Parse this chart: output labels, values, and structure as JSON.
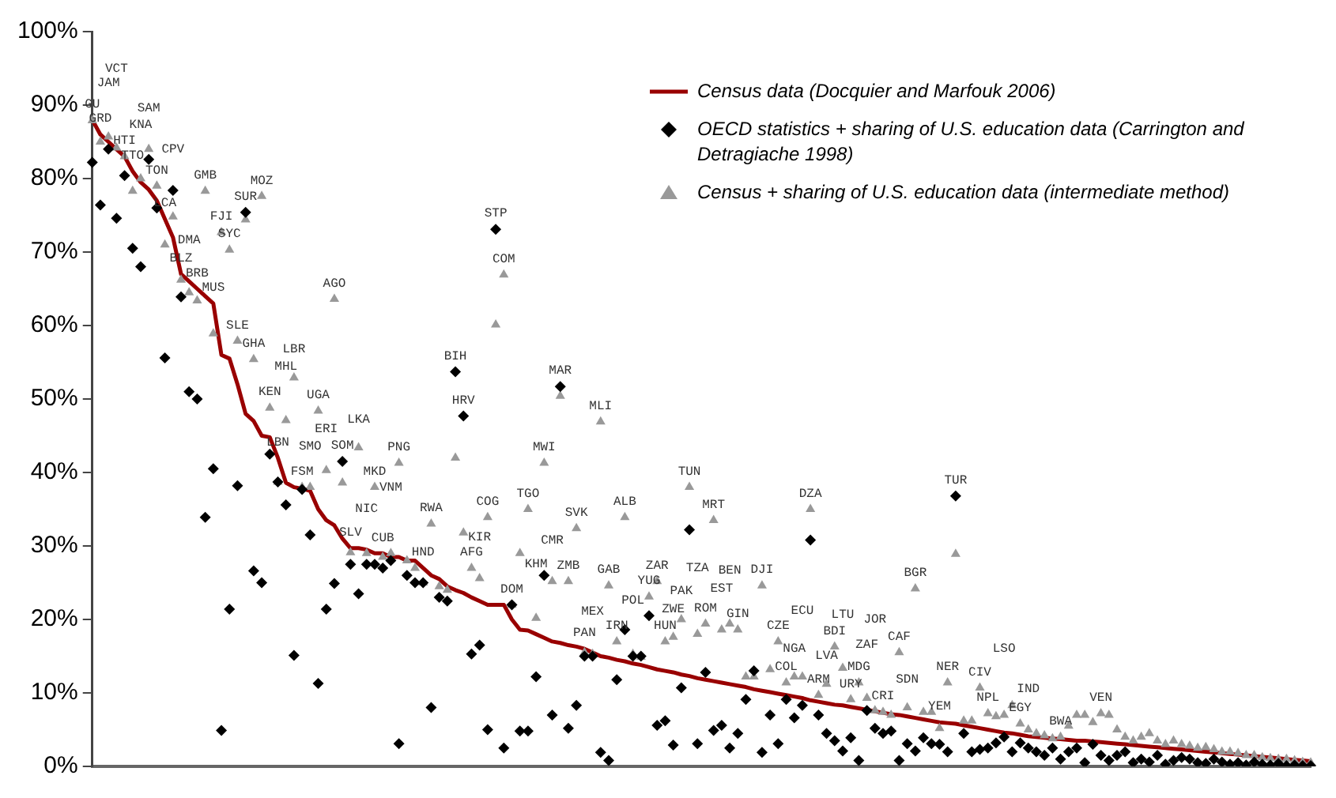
{
  "chart_data": {
    "type": "line",
    "legend": "top right",
    "tick_labels": "y",
    "grid": false,
    "ylim": [
      0,
      100
    ],
    "yticks": [
      {
        "value": 0,
        "label": "0%"
      },
      {
        "value": 10,
        "label": "10%"
      },
      {
        "value": 20,
        "label": "20%"
      },
      {
        "value": 30,
        "label": "30%"
      },
      {
        "value": 40,
        "label": "40%"
      },
      {
        "value": 50,
        "label": "50%"
      },
      {
        "value": 60,
        "label": "60%"
      },
      {
        "value": 70,
        "label": "70%"
      },
      {
        "value": 80,
        "label": "80%"
      },
      {
        "value": 90,
        "label": "90%"
      },
      {
        "value": 100,
        "label": "100%"
      }
    ],
    "categories": [
      "GU",
      "GRD",
      "JAM",
      "VCT",
      "HTI",
      "TTO",
      "KNA",
      "SAM",
      "TON",
      "LCA",
      "CPV",
      "BLZ",
      "DMA",
      "BRB",
      "GMB",
      "MUS",
      "FJI",
      "SYC",
      "SLE",
      "SUR",
      "GHA",
      "MOZ",
      "KEN",
      "LBN",
      "MHL",
      "LBR",
      "FSM",
      "SMO",
      "UGA",
      "ERI",
      "AGO",
      "SOM",
      "SLV",
      "LKA",
      "NIC",
      "MKD",
      "CUB",
      "VNM",
      "PNG",
      null,
      null,
      "HND",
      "RWA",
      null,
      null,
      "BIH",
      "HRV",
      "AFG",
      "KIR",
      "COG",
      "STP",
      "COM",
      "DOM",
      null,
      "TGO",
      "KHM",
      "MWI",
      "CMR",
      "MAR",
      "ZMB",
      "SVK",
      "PAN",
      "MEX",
      "MLI",
      "GAB",
      "IRN",
      "ALB",
      "POL",
      null,
      "YUG",
      "ZAR",
      "HUN",
      "ZWE",
      "PAK",
      "TUN",
      "TZA",
      "ROM",
      "MRT",
      "EST",
      "BEN",
      "GIN",
      null,
      null,
      "DJI",
      null,
      "CZE",
      "COL",
      "NGA",
      "ECU",
      "DZA",
      "ARM",
      "LVA",
      "BDI",
      "LTU",
      "URY",
      "MDG",
      "ZAF",
      "JOR",
      "CRI",
      null,
      "CAF",
      "SDN",
      "BGR",
      null,
      null,
      "YEM",
      "NER",
      "TUR",
      null,
      null,
      "CIV",
      "NPL",
      null,
      "LSO",
      null,
      "EGY",
      "IND",
      null,
      null,
      null,
      "BWA",
      null,
      null,
      null,
      null,
      "VEN",
      null,
      null,
      null,
      null,
      null,
      null,
      null,
      null,
      null,
      null,
      null,
      null,
      null,
      null,
      null,
      null,
      null,
      null,
      null,
      null,
      null,
      null,
      null,
      null,
      null,
      null
    ],
    "series": [
      {
        "name": "Census data (Docquier and Marfouk 2006)",
        "type": "line",
        "marker": "none",
        "line_style": "solid",
        "color": "#990000",
        "values": [
          88,
          86,
          85,
          84,
          83,
          81,
          79.5,
          78.5,
          77,
          74.5,
          72,
          67,
          66,
          65,
          64,
          63,
          56,
          55.5,
          52,
          48,
          47,
          45,
          44.8,
          42,
          38.6,
          38,
          37.8,
          37.5,
          35,
          33.5,
          32.8,
          31,
          29.7,
          29.7,
          29.5,
          29,
          29,
          28.5,
          28.5,
          28,
          28,
          27,
          26,
          25.5,
          24.5,
          24,
          23.6,
          23,
          22.5,
          22,
          22,
          22,
          20,
          18.6,
          18.5,
          18,
          17.5,
          17,
          16.8,
          16.5,
          16.3,
          16,
          15.5,
          15,
          14.8,
          14.5,
          14.3,
          14,
          13.8,
          13.5,
          13.2,
          13,
          12.8,
          12.5,
          12.3,
          12,
          11.8,
          11.6,
          11.4,
          11.2,
          11,
          10.8,
          10.5,
          10.3,
          10.1,
          9.9,
          9.7,
          9.5,
          9.3,
          9,
          8.8,
          8.6,
          8.4,
          8.3,
          8.1,
          7.9,
          7.7,
          7.5,
          7.3,
          7.1,
          7,
          6.8,
          6.6,
          6.4,
          6.2,
          6,
          5.9,
          5.8,
          5.6,
          5.4,
          5.2,
          5,
          4.8,
          4.6,
          4.5,
          4.3,
          4.1,
          4,
          3.9,
          3.8,
          3.7,
          3.6,
          3.5,
          3.5,
          3.4,
          3.3,
          3.2,
          3.1,
          3,
          2.9,
          2.8,
          2.7,
          2.6,
          2.5,
          2.4,
          2.3,
          2.2,
          2.1,
          2,
          1.9,
          1.8,
          1.7,
          1.6,
          1.5,
          1.4,
          1.3,
          1.2,
          1.1,
          1,
          0.9,
          0.8,
          0.7
        ]
      },
      {
        "name": "OECD statistics + sharing of U.S. education data (Carrington and Detragiache 1998)",
        "type": "scatter",
        "marker": "diamond",
        "color": "#000000",
        "values": [
          82.2,
          76.4,
          84,
          74.6,
          80.4,
          70.5,
          68,
          82.6,
          76,
          55.6,
          78.4,
          63.9,
          51,
          50,
          33.9,
          40.5,
          4.9,
          21.4,
          38.2,
          75.4,
          26.6,
          25,
          42.5,
          38.7,
          35.6,
          15.1,
          37.7,
          31.5,
          11.3,
          21.4,
          24.9,
          41.5,
          27.5,
          23.5,
          27.5,
          27.5,
          27,
          28,
          3.1,
          26,
          25,
          25,
          8,
          23,
          22.5,
          53.7,
          47.7,
          15.3,
          16.5,
          5,
          73.1,
          2.5,
          22,
          4.8,
          4.8,
          12.2,
          26,
          7,
          51.7,
          5.2,
          8.3,
          15,
          15,
          1.9,
          0.8,
          11.8,
          18.6,
          15,
          15,
          20.5,
          5.6,
          6.2,
          2.9,
          10.7,
          32.2,
          3.1,
          12.8,
          4.9,
          5.6,
          2.5,
          4.5,
          9.1,
          13,
          1.9,
          7,
          3.1,
          9.1,
          6.6,
          8.3,
          30.8,
          7,
          4.5,
          3.5,
          2.1,
          3.9,
          0.8,
          7.6,
          5.2,
          4.5,
          4.8,
          0.8,
          3.1,
          2.1,
          3.9,
          3.1,
          3,
          2,
          36.8,
          4.5,
          2,
          2.3,
          2.5,
          3.2,
          4,
          2,
          3.2,
          2.5,
          2,
          1.5,
          2.5,
          1,
          2,
          2.5,
          0.5,
          3,
          1.5,
          0.8,
          1.5,
          2,
          0.5,
          1,
          0.6,
          1.5,
          0.3,
          0.8,
          1.2,
          1,
          0.5,
          0.4,
          1,
          0.6,
          0.3,
          0.5,
          0.2,
          0.6,
          0.3,
          0.2,
          0.4,
          0.1,
          0.2,
          0.1,
          0.1
        ]
      },
      {
        "name": "Census + sharing of U.S. education data (intermediate method)",
        "type": "scatter",
        "marker": "triangle",
        "color": "#999999",
        "values": [
          87.9,
          85,
          85.7,
          84.2,
          83,
          78.3,
          80,
          84,
          79,
          71,
          74.8,
          66.2,
          64.5,
          63.4,
          78.3,
          58.9,
          72.7,
          70.3,
          57.9,
          74.4,
          55.4,
          77.6,
          48.8,
          38.7,
          47.1,
          52.9,
          38,
          38,
          48.4,
          40.3,
          63.6,
          38.6,
          29.1,
          43.4,
          29,
          38,
          28.5,
          29,
          41.3,
          28,
          27,
          25,
          33,
          24.5,
          24,
          42,
          31.8,
          27,
          25.6,
          33.9,
          60.1,
          66.9,
          22,
          29,
          35,
          20.2,
          41.3,
          25.2,
          50.4,
          25.2,
          32.4,
          15.5,
          15.3,
          46.9,
          24.6,
          17,
          33.9,
          15.3,
          14.9,
          23.1,
          25.2,
          17,
          17.6,
          20,
          38,
          18,
          19.4,
          33.5,
          18.6,
          19.4,
          18.6,
          12.2,
          12.2,
          24.6,
          13.2,
          17,
          11.4,
          12.2,
          12.2,
          35,
          9.7,
          11.2,
          16.3,
          13.4,
          9.1,
          11.4,
          9.3,
          7.6,
          7.4,
          7,
          15.5,
          8,
          24.2,
          7.4,
          7.4,
          5.2,
          11.4,
          28.9,
          6.2,
          6.2,
          10.7,
          7.2,
          6.8,
          7,
          8.3,
          5.8,
          5,
          4.5,
          4.2,
          3.8,
          4,
          5.5,
          7,
          7,
          6,
          7.2,
          7,
          5,
          4,
          3.5,
          4,
          4.5,
          3.5,
          3,
          3.5,
          3,
          2.8,
          2.5,
          2.6,
          2.3,
          2,
          2,
          1.8,
          1.5,
          1.5,
          1.2,
          1.1,
          1,
          1,
          0.8,
          0.6,
          0.5
        ]
      }
    ]
  }
}
